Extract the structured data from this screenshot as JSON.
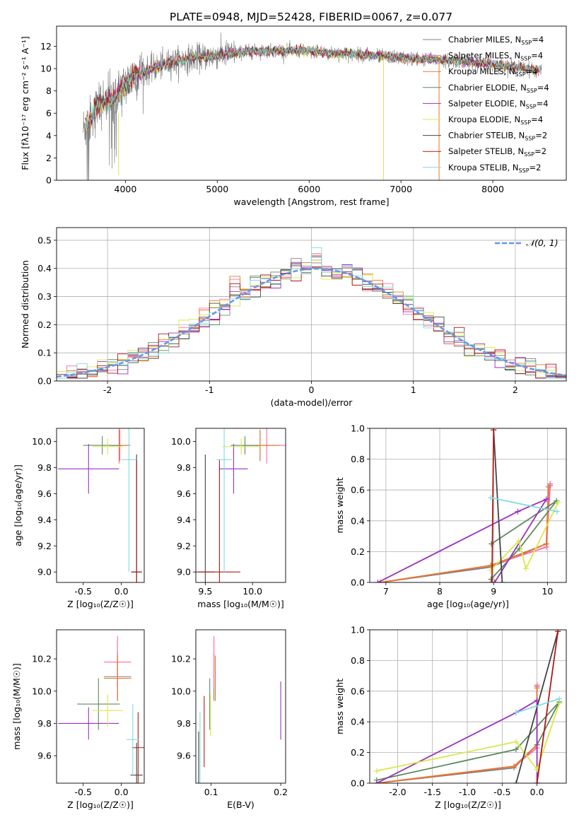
{
  "title": "PLATE=0948, MJD=52428, FIBERID=0067, z=0.077",
  "legend_spectrum": [
    {
      "label": "Chabrier MILES, N",
      "sub": "SSP",
      "tail": "=4",
      "color": "#808080"
    },
    {
      "label": "Salpeter MILES, N",
      "sub": "SSP",
      "tail": "=4",
      "color": "#ff66aa"
    },
    {
      "label": "Kroupa MILES, N",
      "sub": "SSP",
      "tail": "=4",
      "color": "#e8782a"
    },
    {
      "label": "Chabrier ELODIE, N",
      "sub": "SSP",
      "tail": "=4",
      "color": "#5b8a5e"
    },
    {
      "label": "Salpeter ELODIE, N",
      "sub": "SSP",
      "tail": "=4",
      "color": "#9b30c0"
    },
    {
      "label": "Kroupa ELODIE, N",
      "sub": "SSP",
      "tail": "=4",
      "color": "#d8e84a"
    },
    {
      "label": "Chabrier STELIB, N",
      "sub": "SSP",
      "tail": "=2",
      "color": "#444444"
    },
    {
      "label": "Salpeter STELIB, N",
      "sub": "SSP",
      "tail": "=2",
      "color": "#b01818"
    },
    {
      "label": "Kroupa STELIB, N",
      "sub": "SSP",
      "tail": "=2",
      "color": "#7fdce0"
    }
  ],
  "legend_hist": {
    "label": "𝒩(0, 1)",
    "color": "#6495ed"
  },
  "chart_data": [
    {
      "id": "spectrum",
      "type": "line",
      "xlabel": "wavelength [Angstrom, rest frame]",
      "ylabel": "Flux [fλ10⁻¹⁷ erg cm⁻² s⁻¹ A⁻¹]",
      "xlim": [
        3250,
        8800
      ],
      "ylim": [
        0,
        13.8
      ],
      "xticks": [
        4000,
        5000,
        6000,
        7000,
        8000
      ],
      "yticks": [
        0,
        2,
        4,
        6,
        8,
        10,
        12
      ],
      "spectrum_shape": {
        "wavelength": [
          3540,
          3600,
          3700,
          3800,
          3900,
          4000,
          4100,
          4300,
          4500,
          4700,
          5000,
          5300,
          5600,
          5900,
          6200,
          6500,
          6800,
          7100,
          7400,
          7700,
          8000,
          8300,
          8530
        ],
        "flux": [
          4.6,
          5.2,
          6.8,
          7.0,
          7.5,
          8.6,
          9.4,
          10.0,
          10.6,
          10.9,
          11.2,
          11.5,
          11.6,
          11.6,
          11.4,
          11.3,
          11.1,
          10.9,
          10.8,
          10.6,
          10.4,
          10.1,
          9.8
        ]
      },
      "grid": false
    },
    {
      "id": "residual_hist",
      "type": "bar",
      "xlabel": "(data-model)/error",
      "ylabel": "Normed distribution",
      "xlim": [
        -2.5,
        2.5
      ],
      "ylim": [
        0,
        0.545
      ],
      "xticks": [
        -2,
        -1,
        0,
        1,
        2
      ],
      "yticks": [
        0.0,
        0.1,
        0.2,
        0.3,
        0.4,
        0.5
      ],
      "bin_width": 0.1,
      "grid": true,
      "legend": "top-right"
    },
    {
      "id": "z_age",
      "type": "scatter",
      "xlabel": "Z [log₁₀(Z/Z☉)]",
      "ylabel": "age  [log₁₀(age/yr)]",
      "xlim": [
        -0.85,
        0.3
      ],
      "ylim": [
        8.92,
        10.1
      ],
      "xticks": [
        -0.5,
        0.0
      ],
      "yticks": [
        9.0,
        9.2,
        9.4,
        9.6,
        9.8,
        10.0
      ],
      "points": [
        {
          "x": -0.02,
          "y": 9.97,
          "xerr": 0.12,
          "yerr": 0.12,
          "series": 0
        },
        {
          "x": -0.03,
          "y": 9.97,
          "xerr": 0.15,
          "yerr": 0.14,
          "series": 1
        },
        {
          "x": -0.02,
          "y": 9.97,
          "xerr": 0.12,
          "yerr": 0.12,
          "series": 2
        },
        {
          "x": -0.25,
          "y": 9.97,
          "xerr": 0.25,
          "yerr": 0.07,
          "series": 3
        },
        {
          "x": -0.43,
          "y": 9.79,
          "xerr": 0.4,
          "yerr": 0.19,
          "series": 4
        },
        {
          "x": -0.18,
          "y": 9.96,
          "xerr": 0.2,
          "yerr": 0.06,
          "series": 5
        },
        {
          "x": 0.2,
          "y": 9.0,
          "xerr": 0.07,
          "yerr": 0.9,
          "series": 6
        },
        {
          "x": 0.2,
          "y": 9.0,
          "xerr": 0.07,
          "yerr": 0.86,
          "series": 7
        },
        {
          "x": 0.1,
          "y": 9.86,
          "xerr": 0.1,
          "yerr": 0.86,
          "series": 8
        }
      ]
    },
    {
      "id": "mass_age",
      "type": "scatter",
      "xlabel": "mass [log₁₀(M/M☉)]",
      "ylabel": "",
      "xlim": [
        9.4,
        10.35
      ],
      "ylim": [
        8.92,
        10.1
      ],
      "xticks": [
        9.5,
        10.0
      ],
      "yticks": [
        9.0,
        9.2,
        9.4,
        9.6,
        9.8,
        10.0
      ],
      "points": [
        {
          "x": 10.08,
          "y": 9.97,
          "xerr": 0.2,
          "yerr": 0.12,
          "series": 0
        },
        {
          "x": 10.15,
          "y": 9.97,
          "xerr": 0.22,
          "yerr": 0.14,
          "series": 1
        },
        {
          "x": 10.08,
          "y": 9.97,
          "xerr": 0.2,
          "yerr": 0.12,
          "series": 2
        },
        {
          "x": 9.92,
          "y": 9.97,
          "xerr": 0.15,
          "yerr": 0.07,
          "series": 3
        },
        {
          "x": 9.8,
          "y": 9.79,
          "xerr": 0.15,
          "yerr": 0.19,
          "series": 4
        },
        {
          "x": 9.88,
          "y": 9.96,
          "xerr": 0.2,
          "yerr": 0.06,
          "series": 5
        },
        {
          "x": 9.5,
          "y": 9.0,
          "xerr": 0.1,
          "yerr": 0.9,
          "series": 6
        },
        {
          "x": 9.65,
          "y": 9.0,
          "xerr": 0.22,
          "yerr": 0.86,
          "series": 7
        },
        {
          "x": 9.7,
          "y": 9.86,
          "xerr": 0.08,
          "yerr": 0.86,
          "series": 8
        }
      ]
    },
    {
      "id": "age_weight",
      "type": "line",
      "xlabel": "age  [log₁₀(age/yr)]",
      "ylabel": "mass weight",
      "xlim": [
        6.7,
        10.35
      ],
      "ylim": [
        0,
        1.0
      ],
      "xticks": [
        7,
        8,
        9,
        10
      ],
      "yticks": [
        0.0,
        0.2,
        0.4,
        0.6,
        0.8,
        1.0
      ],
      "grid": true
    },
    {
      "id": "z_mass",
      "type": "scatter",
      "xlabel": "Z [log₁₀(Z/Z☉)]",
      "ylabel": "mass [log₁₀(M/M☉)]",
      "xlim": [
        -0.85,
        0.3
      ],
      "ylim": [
        9.43,
        10.38
      ],
      "xticks": [
        -0.5,
        0.0
      ],
      "yticks": [
        9.6,
        9.8,
        10.0,
        10.2
      ],
      "points": [
        {
          "x": -0.05,
          "y": 10.09,
          "xerr": 0.18,
          "yerr": 0.15,
          "series": 0
        },
        {
          "x": -0.05,
          "y": 10.18,
          "xerr": 0.18,
          "yerr": 0.16,
          "series": 1
        },
        {
          "x": -0.05,
          "y": 10.08,
          "xerr": 0.18,
          "yerr": 0.14,
          "series": 2
        },
        {
          "x": -0.3,
          "y": 9.92,
          "xerr": 0.28,
          "yerr": 0.16,
          "series": 3
        },
        {
          "x": -0.43,
          "y": 9.8,
          "xerr": 0.4,
          "yerr": 0.1,
          "series": 4
        },
        {
          "x": -0.18,
          "y": 9.88,
          "xerr": 0.2,
          "yerr": 0.1,
          "series": 5
        },
        {
          "x": 0.2,
          "y": 9.48,
          "xerr": 0.08,
          "yerr": 0.2,
          "series": 6
        },
        {
          "x": 0.22,
          "y": 9.65,
          "xerr": 0.08,
          "yerr": 0.22,
          "series": 7
        },
        {
          "x": 0.15,
          "y": 9.7,
          "xerr": 0.08,
          "yerr": 0.22,
          "series": 8
        }
      ]
    },
    {
      "id": "ebv_mass",
      "type": "scatter",
      "xlabel": "E(B-V)",
      "ylabel": "",
      "xlim": [
        0.078,
        0.207
      ],
      "ylim": [
        9.43,
        10.38
      ],
      "xticks": [
        0.1,
        0.2
      ],
      "yticks": [
        9.6,
        9.8,
        10.0,
        10.2
      ],
      "points": [
        {
          "x": 0.104,
          "y": 10.09,
          "yerr": 0.15,
          "series": 0
        },
        {
          "x": 0.104,
          "y": 10.18,
          "yerr": 0.16,
          "series": 1
        },
        {
          "x": 0.106,
          "y": 10.08,
          "yerr": 0.14,
          "series": 2
        },
        {
          "x": 0.098,
          "y": 9.92,
          "yerr": 0.16,
          "series": 3
        },
        {
          "x": 0.2,
          "y": 9.88,
          "yerr": 0.18,
          "series": 4
        },
        {
          "x": 0.099,
          "y": 9.85,
          "yerr": 0.13,
          "series": 5
        },
        {
          "x": 0.082,
          "y": 9.55,
          "yerr": 0.2,
          "series": 6
        },
        {
          "x": 0.09,
          "y": 9.75,
          "yerr": 0.22,
          "series": 7
        },
        {
          "x": 0.084,
          "y": 9.65,
          "yerr": 0.22,
          "series": 8
        }
      ]
    },
    {
      "id": "z_weight",
      "type": "line",
      "xlabel": "Z [log₁₀(Z/Z☉)]",
      "ylabel": "mass weight",
      "xlim": [
        -2.4,
        0.42
      ],
      "ylim": [
        0,
        1.0
      ],
      "xticks": [
        -2.0,
        -1.5,
        -1.0,
        -0.5,
        0.0
      ],
      "yticks": [
        0.0,
        0.2,
        0.4,
        0.6,
        0.8,
        1.0
      ],
      "grid": true
    }
  ],
  "series_weights": [
    {
      "name": "Chabrier MILES",
      "age": [
        6.9,
        8.95,
        9.98,
        10.05
      ],
      "Z": [
        -2.3,
        -0.33,
        0.0,
        0.0
      ],
      "w": [
        0.0,
        0.1,
        0.25,
        0.63
      ]
    },
    {
      "name": "Salpeter MILES",
      "age": [
        6.9,
        8.95,
        9.98,
        10.05
      ],
      "Z": [
        -2.3,
        -0.33,
        0.0,
        0.0
      ],
      "w": [
        0.0,
        0.11,
        0.23,
        0.64
      ]
    },
    {
      "name": "Kroupa MILES",
      "age": [
        6.9,
        8.95,
        9.98,
        10.02
      ],
      "Z": [
        -2.3,
        -0.33,
        0.0,
        0.0
      ],
      "w": [
        0.0,
        0.11,
        0.25,
        0.62
      ]
    },
    {
      "name": "Chabrier ELODIE",
      "age": [
        8.95,
        9.48,
        10.17,
        8.96
      ],
      "Z": [
        -2.3,
        -0.3,
        0.32,
        0.0
      ],
      "w": [
        0.02,
        0.22,
        0.53,
        0.25
      ]
    },
    {
      "name": "Salpeter ELODIE",
      "age": [
        6.85,
        9.45,
        9.98,
        9.02
      ],
      "Z": [
        -2.3,
        -0.3,
        0.0,
        0.0
      ],
      "w": [
        0.0,
        0.46,
        0.54,
        0.0
      ]
    },
    {
      "name": "Kroupa ELODIE",
      "age": [
        8.95,
        9.47,
        9.6,
        10.2
      ],
      "Z": [
        -2.3,
        -0.3,
        0.0,
        0.32
      ],
      "w": [
        0.08,
        0.27,
        0.09,
        0.52
      ]
    },
    {
      "name": "Chabrier STELIB",
      "age": [
        9.0,
        9.16
      ],
      "Z": [
        0.3,
        -0.3
      ],
      "w": [
        0.99,
        0.0
      ]
    },
    {
      "name": "Salpeter STELIB",
      "age": [
        9.0,
        8.97
      ],
      "Z": [
        0.3,
        0.0
      ],
      "w": [
        0.99,
        0.0
      ]
    },
    {
      "name": "Kroupa STELIB",
      "age": [
        8.95,
        10.18
      ],
      "Z": [
        0.32,
        -0.3
      ],
      "w": [
        0.55,
        0.46
      ]
    }
  ]
}
